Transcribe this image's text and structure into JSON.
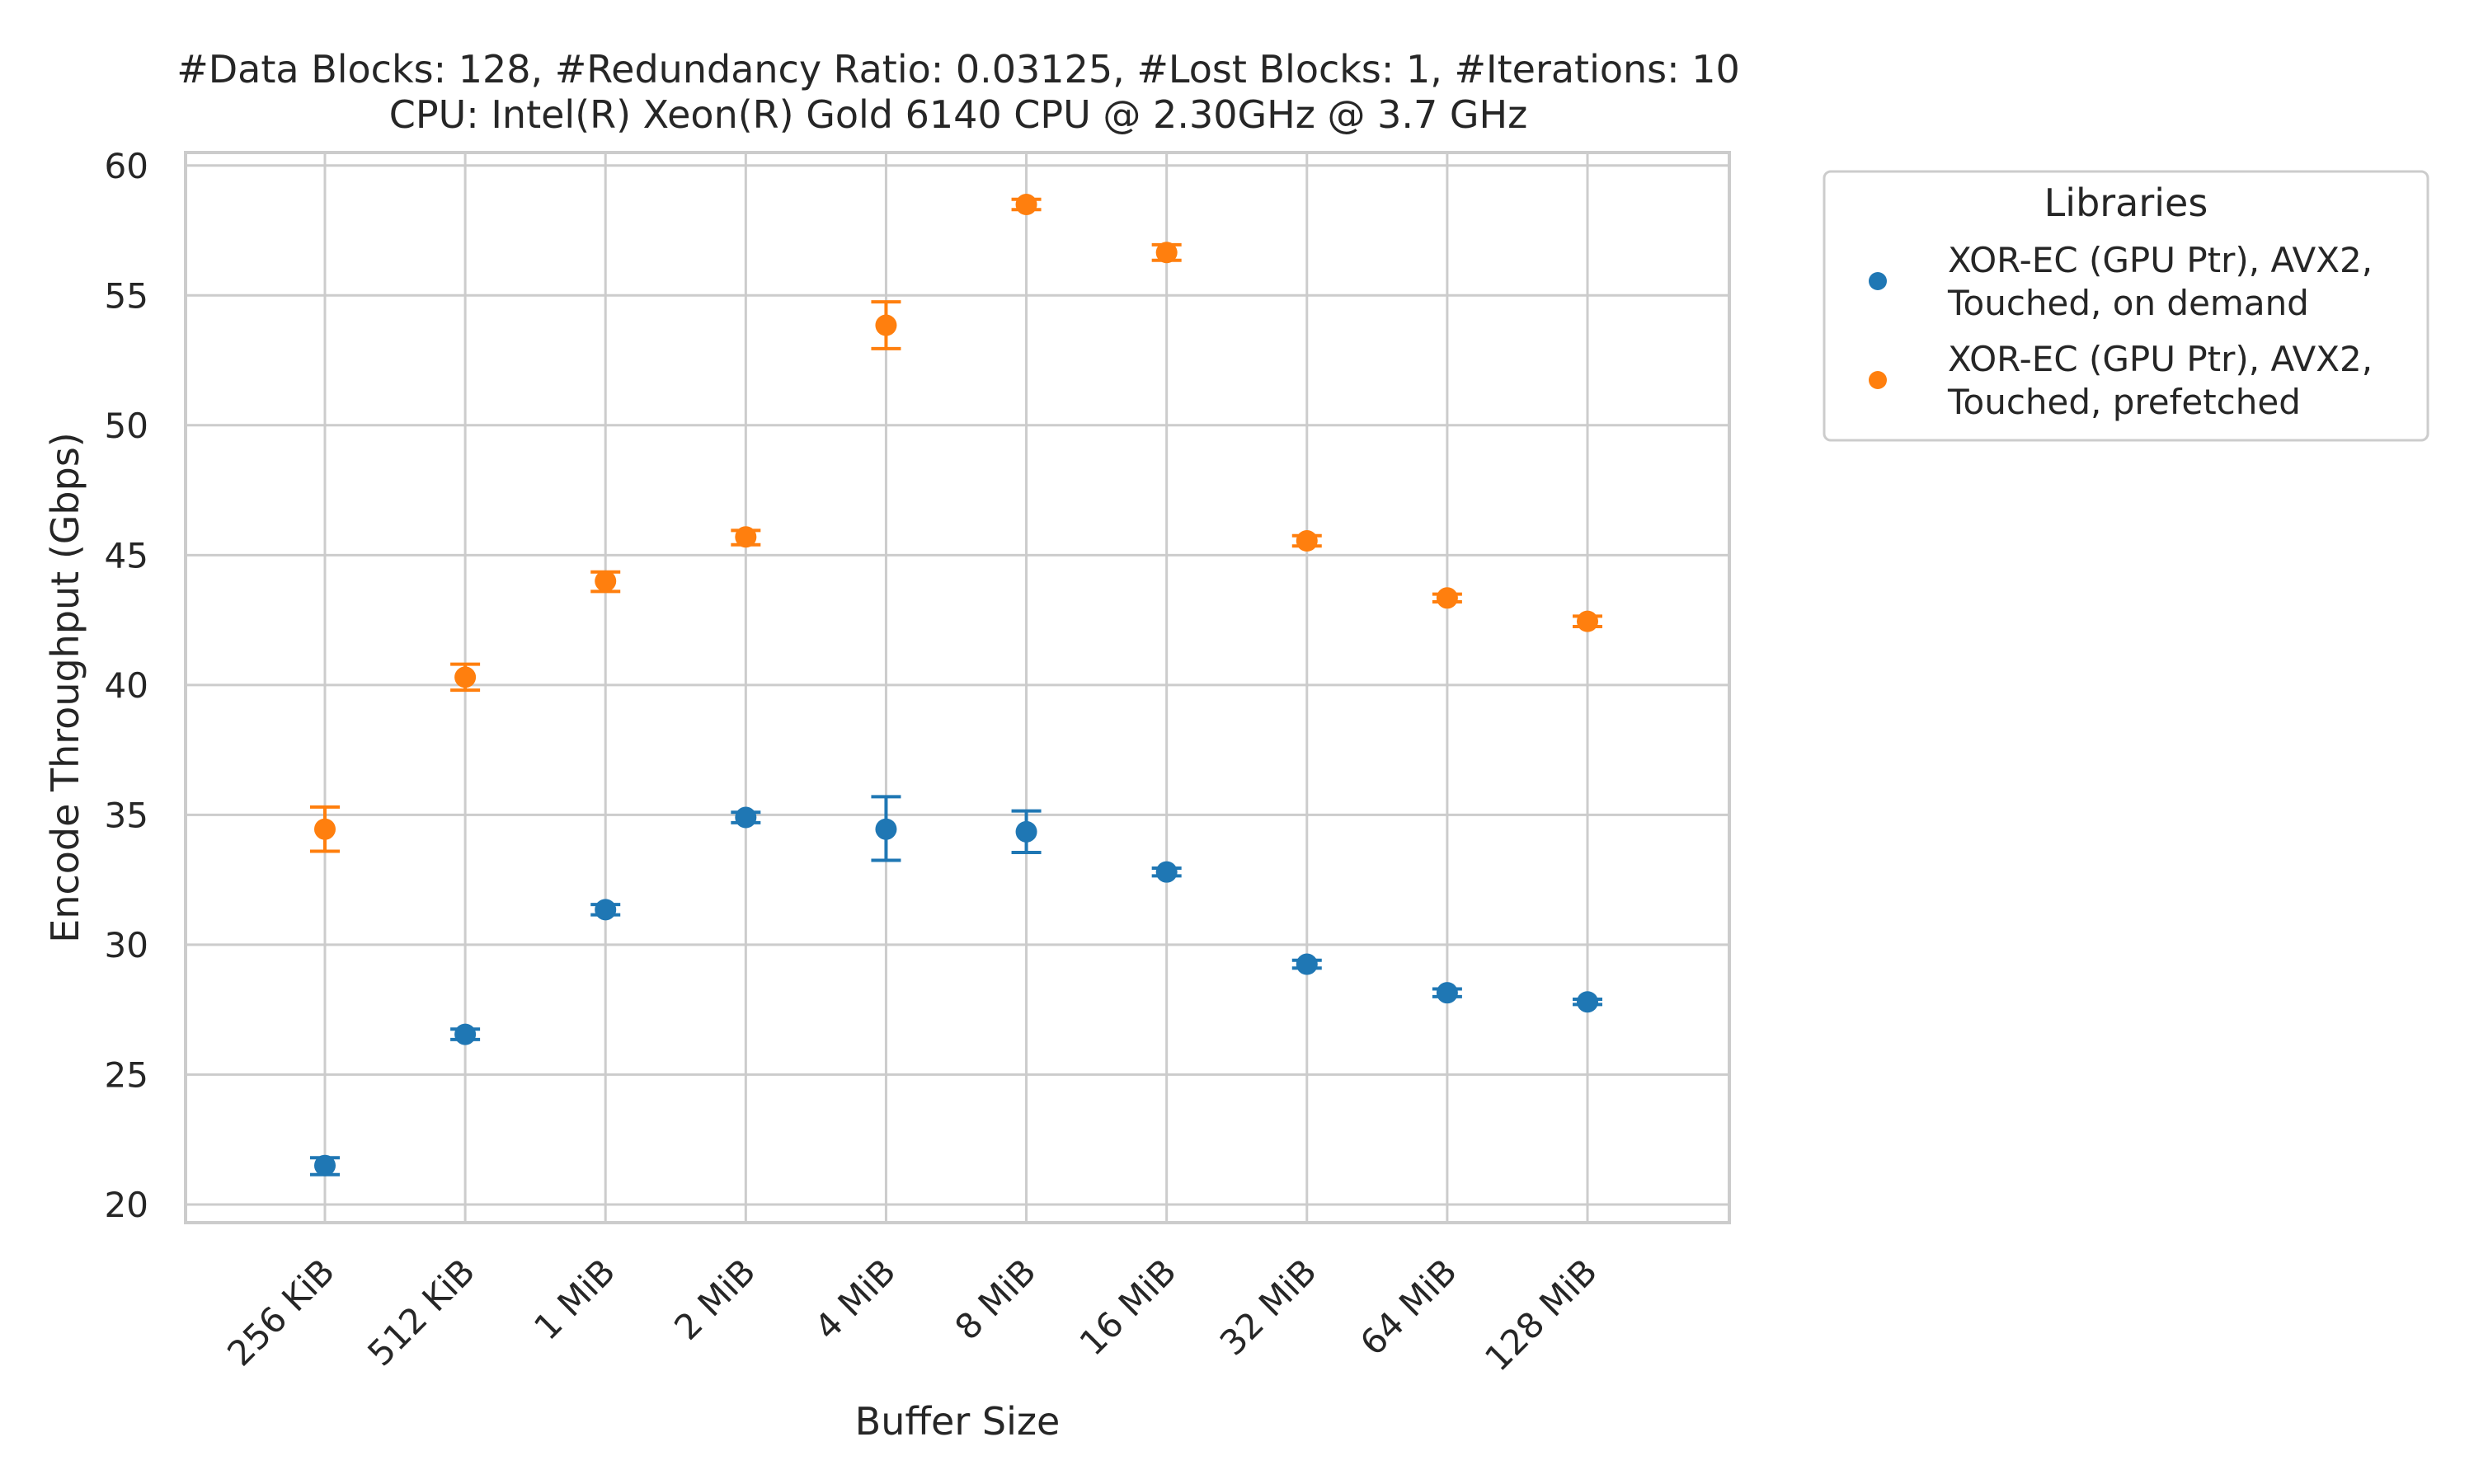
{
  "chart_data": {
    "type": "scatter",
    "title": "#Data Blocks: 128, #Redundancy Ratio: 0.03125, #Lost Blocks: 1, #Iterations: 10",
    "subtitle": "CPU: Intel(R) Xeon(R) Gold 6140 CPU @ 2.30GHz @ 3.7 GHz",
    "xlabel": "Buffer Size",
    "ylabel": "Encode Throughput (Gbps)",
    "categories": [
      "256 KiB",
      "512 KiB",
      "1 MiB",
      "2 MiB",
      "4 MiB",
      "8 MiB",
      "16 MiB",
      "32 MiB",
      "64 MiB",
      "128 MiB"
    ],
    "ylim": [
      19.3,
      60.5
    ],
    "yticks": [
      20,
      25,
      30,
      35,
      40,
      45,
      50,
      55,
      60
    ],
    "grid": true,
    "error_bars": true,
    "legend": {
      "title": "Libraries",
      "placement": "outside-right"
    },
    "series": [
      {
        "name": "XOR-EC (GPU Ptr), AVX2, Touched, on demand",
        "legend_lines": [
          "XOR-EC (GPU Ptr), AVX2,",
          "Touched, on demand"
        ],
        "color": "#1f77b4",
        "values": [
          21.5,
          26.55,
          31.35,
          34.9,
          34.45,
          34.35,
          32.8,
          29.25,
          28.15,
          27.8
        ],
        "err_low": [
          21.15,
          26.35,
          31.15,
          34.7,
          33.25,
          33.55,
          32.65,
          29.1,
          28.0,
          27.7
        ],
        "err_high": [
          21.8,
          26.75,
          31.55,
          35.1,
          35.7,
          35.15,
          32.95,
          29.4,
          28.3,
          27.9
        ]
      },
      {
        "name": "XOR-EC (GPU Ptr), AVX2, Touched, prefetched",
        "legend_lines": [
          "XOR-EC (GPU Ptr), AVX2,",
          "Touched, prefetched"
        ],
        "color": "#ff7f0e",
        "values": [
          34.45,
          40.3,
          44.0,
          45.7,
          53.85,
          58.5,
          56.65,
          45.55,
          43.35,
          42.45
        ],
        "err_low": [
          33.6,
          39.8,
          43.6,
          45.4,
          52.95,
          58.3,
          56.35,
          45.35,
          43.2,
          42.25
        ],
        "err_high": [
          35.3,
          40.8,
          44.35,
          45.95,
          54.75,
          58.7,
          56.95,
          45.75,
          43.5,
          42.65
        ]
      }
    ]
  }
}
